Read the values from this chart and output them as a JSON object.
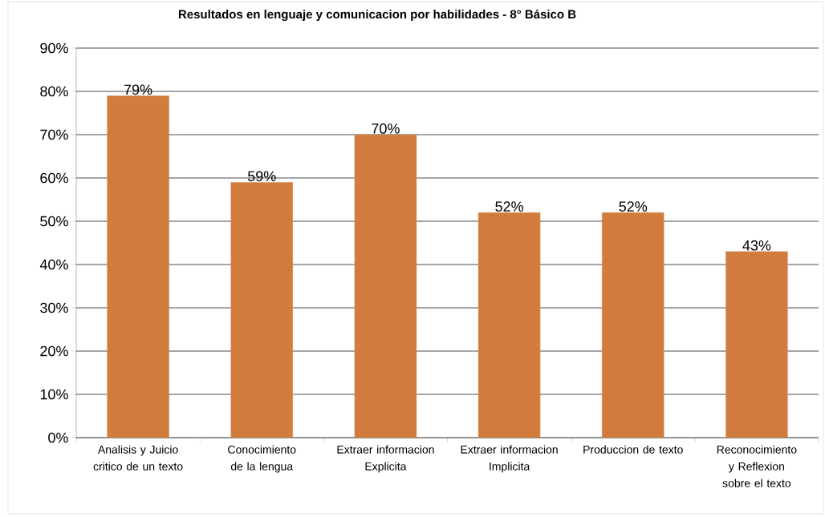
{
  "chart_data": {
    "type": "bar",
    "title": "Resultados en lenguaje y comunicacion por habilidades - 8° Básico B",
    "categories": [
      "Analisis y Juicio critico de un texto",
      "Conocimiento de la lengua",
      "Extraer informacion Explicita",
      "Extraer informacion Implicita",
      "Produccion de texto",
      "Reconocimiento y Reflexion sobre el texto"
    ],
    "values": [
      79,
      59,
      70,
      52,
      52,
      43
    ],
    "value_labels": [
      "79%",
      "59%",
      "70%",
      "52%",
      "52%",
      "43%"
    ],
    "color": "#d17c3c",
    "ylim": [
      0,
      90
    ],
    "yticks": [
      {
        "value": 0,
        "label": "0%"
      },
      {
        "value": 10,
        "label": "10%"
      },
      {
        "value": 20,
        "label": "20%"
      },
      {
        "value": 30,
        "label": "30%"
      },
      {
        "value": 40,
        "label": "40%"
      },
      {
        "value": 50,
        "label": "50%"
      },
      {
        "value": 60,
        "label": "60%"
      },
      {
        "value": 70,
        "label": "70%"
      },
      {
        "value": 80,
        "label": "80%"
      },
      {
        "value": 90,
        "label": "90%"
      }
    ],
    "grid": "y"
  }
}
